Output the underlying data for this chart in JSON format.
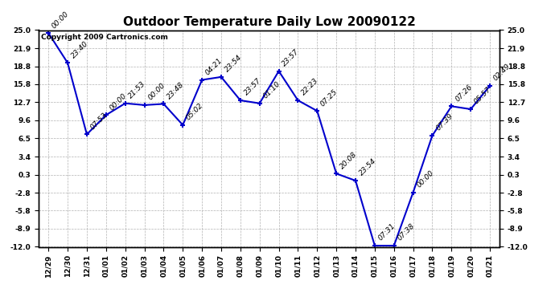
{
  "title": "Outdoor Temperature Daily Low 20090122",
  "copyright": "Copyright 2009 Cartronics.com",
  "dates": [
    "12/29",
    "12/30",
    "12/31",
    "01/01",
    "01/02",
    "01/03",
    "01/04",
    "01/05",
    "01/06",
    "01/07",
    "01/08",
    "01/09",
    "01/10",
    "01/11",
    "01/12",
    "01/13",
    "01/14",
    "01/15",
    "01/16",
    "01/17",
    "01/18",
    "01/19",
    "01/20",
    "01/21"
  ],
  "values": [
    24.5,
    19.4,
    7.2,
    10.5,
    12.5,
    12.2,
    12.4,
    8.8,
    16.5,
    17.0,
    13.0,
    12.5,
    18.0,
    13.0,
    11.2,
    0.5,
    -0.7,
    -11.8,
    -11.8,
    -2.7,
    7.0,
    12.0,
    11.5,
    15.5
  ],
  "times": [
    "00:00",
    "23:40",
    "07:53",
    "00:00",
    "21:53",
    "00:00",
    "23:48",
    "05:02",
    "04:21",
    "23:54",
    "23:57",
    "01:10",
    "23:57",
    "22:23",
    "07:25",
    "20:08",
    "23:54",
    "07:31",
    "07:38",
    "00:00",
    "07:39",
    "07:26",
    "05:57",
    "02:49"
  ],
  "ylim": [
    -12.0,
    25.0
  ],
  "yticks": [
    25.0,
    21.9,
    18.8,
    15.8,
    12.7,
    9.6,
    6.5,
    3.4,
    0.3,
    -2.8,
    -5.8,
    -8.9,
    -12.0
  ],
  "line_color": "#0000cc",
  "bg_color": "#ffffff",
  "grid_color": "#aaaaaa",
  "title_fontsize": 11,
  "tick_fontsize": 6.5,
  "annot_fontsize": 6.5,
  "copyright_fontsize": 6.5
}
